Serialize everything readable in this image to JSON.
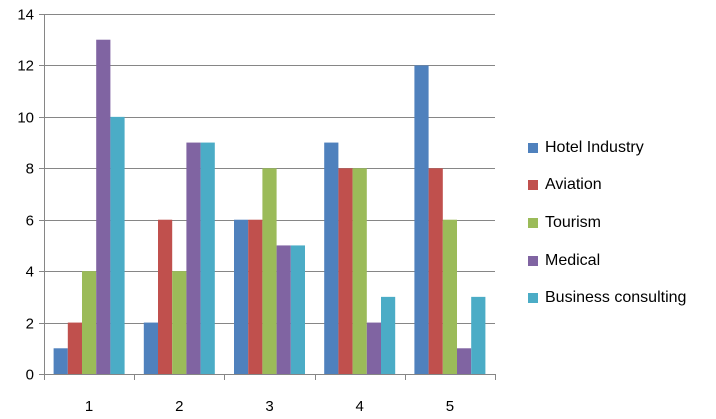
{
  "chart_data": {
    "type": "bar",
    "categories": [
      "1",
      "2",
      "3",
      "4",
      "5"
    ],
    "series": [
      {
        "name": "Hotel Industry",
        "color": "#4F81BD",
        "values": [
          1,
          2,
          6,
          9,
          12
        ]
      },
      {
        "name": "Aviation",
        "color": "#C0504D",
        "values": [
          2,
          6,
          6,
          8,
          8
        ]
      },
      {
        "name": "Tourism",
        "color": "#9BBB59",
        "values": [
          4,
          4,
          8,
          8,
          6
        ]
      },
      {
        "name": "Medical",
        "color": "#8064A2",
        "values": [
          13,
          9,
          5,
          2,
          1
        ]
      },
      {
        "name": "Business consulting",
        "color": "#4BACC6",
        "values": [
          10,
          9,
          5,
          3,
          3
        ]
      }
    ],
    "ylim": [
      0,
      14
    ],
    "yticks": [
      0,
      2,
      4,
      6,
      8,
      10,
      12,
      14
    ],
    "grid": true,
    "legend_position": "right"
  }
}
